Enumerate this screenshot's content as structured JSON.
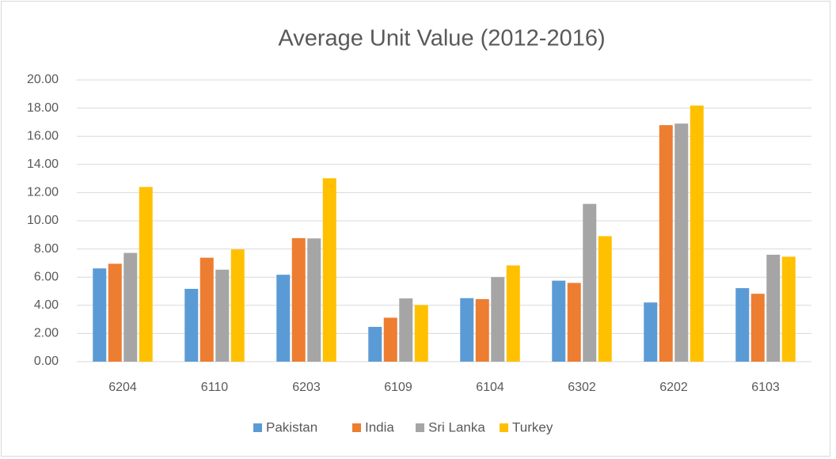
{
  "chart_data": {
    "type": "bar",
    "title": "Average Unit Value (2012-2016)",
    "categories": [
      "6204",
      "6110",
      "6203",
      "6109",
      "6104",
      "6302",
      "6202",
      "6103"
    ],
    "series": [
      {
        "name": "Pakistan",
        "color": "#5b9bd5",
        "values": [
          6.62,
          5.17,
          6.17,
          2.47,
          4.51,
          5.75,
          4.2,
          5.22
        ]
      },
      {
        "name": "India",
        "color": "#ed7d31",
        "values": [
          6.95,
          7.38,
          8.77,
          3.12,
          4.44,
          5.59,
          16.79,
          4.82
        ]
      },
      {
        "name": "Sri Lanka",
        "color": "#a5a5a5",
        "values": [
          7.72,
          6.53,
          8.75,
          4.49,
          6.0,
          11.2,
          16.9,
          7.59
        ]
      },
      {
        "name": "Turkey",
        "color": "#ffc000",
        "values": [
          12.4,
          7.97,
          13.02,
          4.02,
          6.83,
          8.91,
          18.18,
          7.45
        ]
      }
    ],
    "ylim": [
      0,
      20
    ],
    "yticks": [
      {
        "value": 0,
        "label": "0.00"
      },
      {
        "value": 2,
        "label": "2.00"
      },
      {
        "value": 4,
        "label": "4.00"
      },
      {
        "value": 6,
        "label": "6.00"
      },
      {
        "value": 8,
        "label": "8.00"
      },
      {
        "value": 10,
        "label": "10.00"
      },
      {
        "value": 12,
        "label": "12.00"
      },
      {
        "value": 14,
        "label": "14.00"
      },
      {
        "value": 16,
        "label": "16.00"
      },
      {
        "value": 18,
        "label": "18.00"
      },
      {
        "value": 20,
        "label": "20.00"
      }
    ],
    "grid": true,
    "legend": "bottom"
  }
}
